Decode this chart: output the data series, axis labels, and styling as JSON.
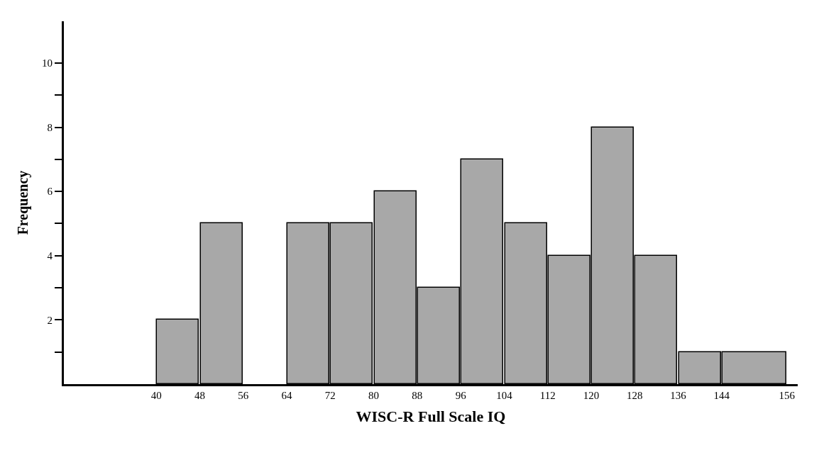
{
  "chart_data": {
    "type": "histogram",
    "xlabel": "WISC-R Full Scale IQ",
    "ylabel": "Frequency",
    "bins": [
      40,
      48,
      56,
      64,
      72,
      80,
      88,
      96,
      104,
      112,
      120,
      128,
      136,
      144,
      156
    ],
    "values": [
      2,
      5,
      0,
      5,
      5,
      6,
      3,
      7,
      5,
      4,
      8,
      4,
      1,
      1
    ],
    "color": "#a8a8a8",
    "xlim": [
      23,
      158
    ],
    "xticks": [
      40,
      48,
      56,
      64,
      72,
      80,
      88,
      96,
      104,
      112,
      120,
      128,
      136,
      144,
      156
    ],
    "ylim": [
      0,
      11.3
    ],
    "yticks": [
      {
        "value": 1,
        "label": null
      },
      2,
      {
        "value": 3,
        "label": null
      },
      4,
      {
        "value": 5,
        "label": null
      },
      6,
      {
        "value": 7,
        "label": null
      },
      8,
      {
        "value": 9,
        "label": null
      },
      10
    ]
  }
}
